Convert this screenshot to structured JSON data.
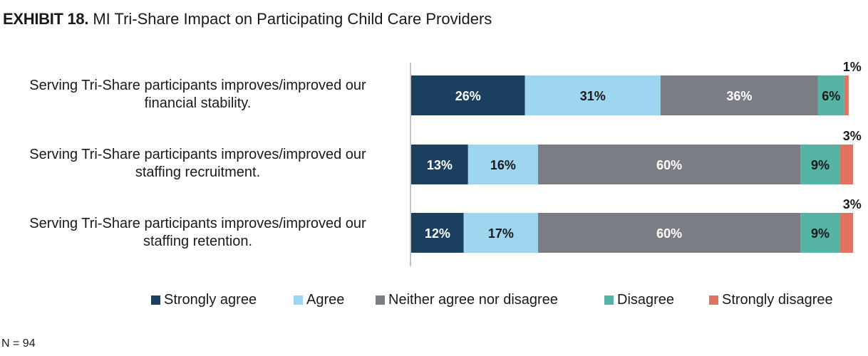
{
  "title": {
    "lead": "EXHIBIT 18.",
    "text": "MI Tri-Share Impact on Participating Child Care Providers"
  },
  "chart_data": {
    "type": "bar",
    "orientation": "horizontal",
    "stacked": true,
    "categories": [
      {
        "line1": "Serving Tri-Share participants improves/improved our",
        "line2": "financial stability."
      },
      {
        "line1": "Serving Tri-Share participants improves/improved our",
        "line2": "staffing recruitment."
      },
      {
        "line1": "Serving Tri-Share participants improves/improved our",
        "line2": "staffing retention."
      }
    ],
    "series": [
      {
        "name": "Strongly agree",
        "color": "#1b3f5e",
        "label_color": "#ffffff",
        "values": [
          26,
          13,
          12
        ]
      },
      {
        "name": "Agree",
        "color": "#9dd6ee",
        "label_color": "#1a1a1a",
        "values": [
          31,
          16,
          17
        ]
      },
      {
        "name": "Neither agree nor disagree",
        "color": "#7a7d84",
        "label_color": "#ffffff",
        "values": [
          36,
          60,
          60
        ]
      },
      {
        "name": "Disagree",
        "color": "#55b4a3",
        "label_color": "#1a1a1a",
        "values": [
          6,
          9,
          9
        ]
      },
      {
        "name": "Strongly disagree",
        "color": "#e17461",
        "label_color": "#1a1a1a",
        "values": [
          1,
          3,
          3
        ]
      }
    ],
    "value_suffix": "%",
    "xlim": [
      0,
      101
    ],
    "legend_position": "bottom",
    "grid": false
  },
  "note": "N = 94"
}
